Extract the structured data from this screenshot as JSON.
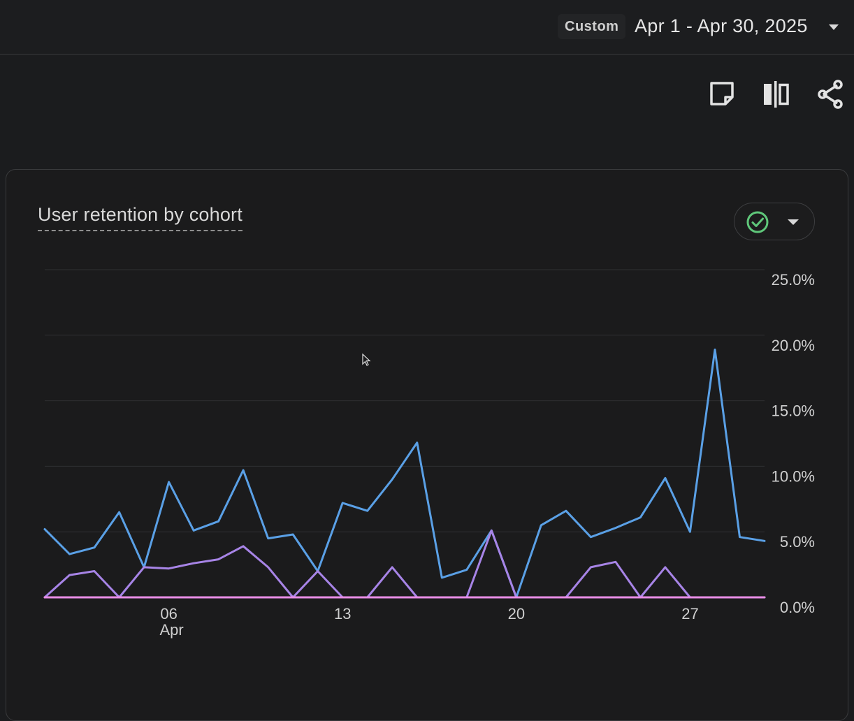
{
  "header": {
    "range_chip": "Custom",
    "date_range": "Apr 1 - Apr 30, 2025"
  },
  "toolbar": {
    "icons": [
      "note-icon",
      "compare-columns-icon",
      "share-icon"
    ]
  },
  "card": {
    "title": "User retention by cohort",
    "status_icon": "check-circle-icon",
    "status_color": "#5fc77a"
  },
  "chart_data": {
    "type": "line",
    "title": "User retention by cohort",
    "x": [
      1,
      2,
      3,
      4,
      5,
      6,
      7,
      8,
      9,
      10,
      11,
      12,
      13,
      14,
      15,
      16,
      17,
      18,
      19,
      20,
      21,
      22,
      23,
      24,
      25,
      26,
      27,
      28,
      29,
      30
    ],
    "x_tick_labels": [
      {
        "day": 6,
        "label": "06",
        "sublabel": "Apr"
      },
      {
        "day": 13,
        "label": "13",
        "sublabel": ""
      },
      {
        "day": 20,
        "label": "20",
        "sublabel": ""
      },
      {
        "day": 27,
        "label": "27",
        "sublabel": ""
      }
    ],
    "y_ticks": [
      "0.0%",
      "5.0%",
      "10.0%",
      "15.0%",
      "20.0%",
      "25.0%"
    ],
    "ylim": [
      0,
      25
    ],
    "grid": true,
    "series": [
      {
        "color": "#5aa0e6",
        "values": [
          5.2,
          3.3,
          3.8,
          6.5,
          2.3,
          8.8,
          5.1,
          5.8,
          9.7,
          4.5,
          4.8,
          2.0,
          7.2,
          6.6,
          9.0,
          11.8,
          1.5,
          2.1,
          5.1,
          0.0,
          5.5,
          6.6,
          4.6,
          5.3,
          6.1,
          9.1,
          5.0,
          18.9,
          4.6,
          4.3
        ]
      },
      {
        "color": "#a784e6",
        "values": [
          0.0,
          1.7,
          2.0,
          0.0,
          2.3,
          2.2,
          2.6,
          2.9,
          3.9,
          2.3,
          0.0,
          2.0,
          0.0,
          0.0,
          2.3,
          0.0,
          0.0,
          0.0,
          5.1,
          0.0,
          0.0,
          0.0,
          2.3,
          2.7,
          0.0,
          2.3,
          0.0,
          0.0,
          0.0,
          0.0
        ]
      },
      {
        "color": "#e88de6",
        "values": [
          0.0,
          0.0,
          0.0,
          0.0,
          0.0,
          0.0,
          0.0,
          0.0,
          0.0,
          0.0,
          0.0,
          0.0,
          0.0,
          0.0,
          0.0,
          0.0,
          0.0,
          0.0,
          0.0,
          0.0,
          0.0,
          0.0,
          0.0,
          0.0,
          0.0,
          0.0,
          0.0,
          0.0,
          0.0,
          0.0
        ]
      }
    ]
  }
}
